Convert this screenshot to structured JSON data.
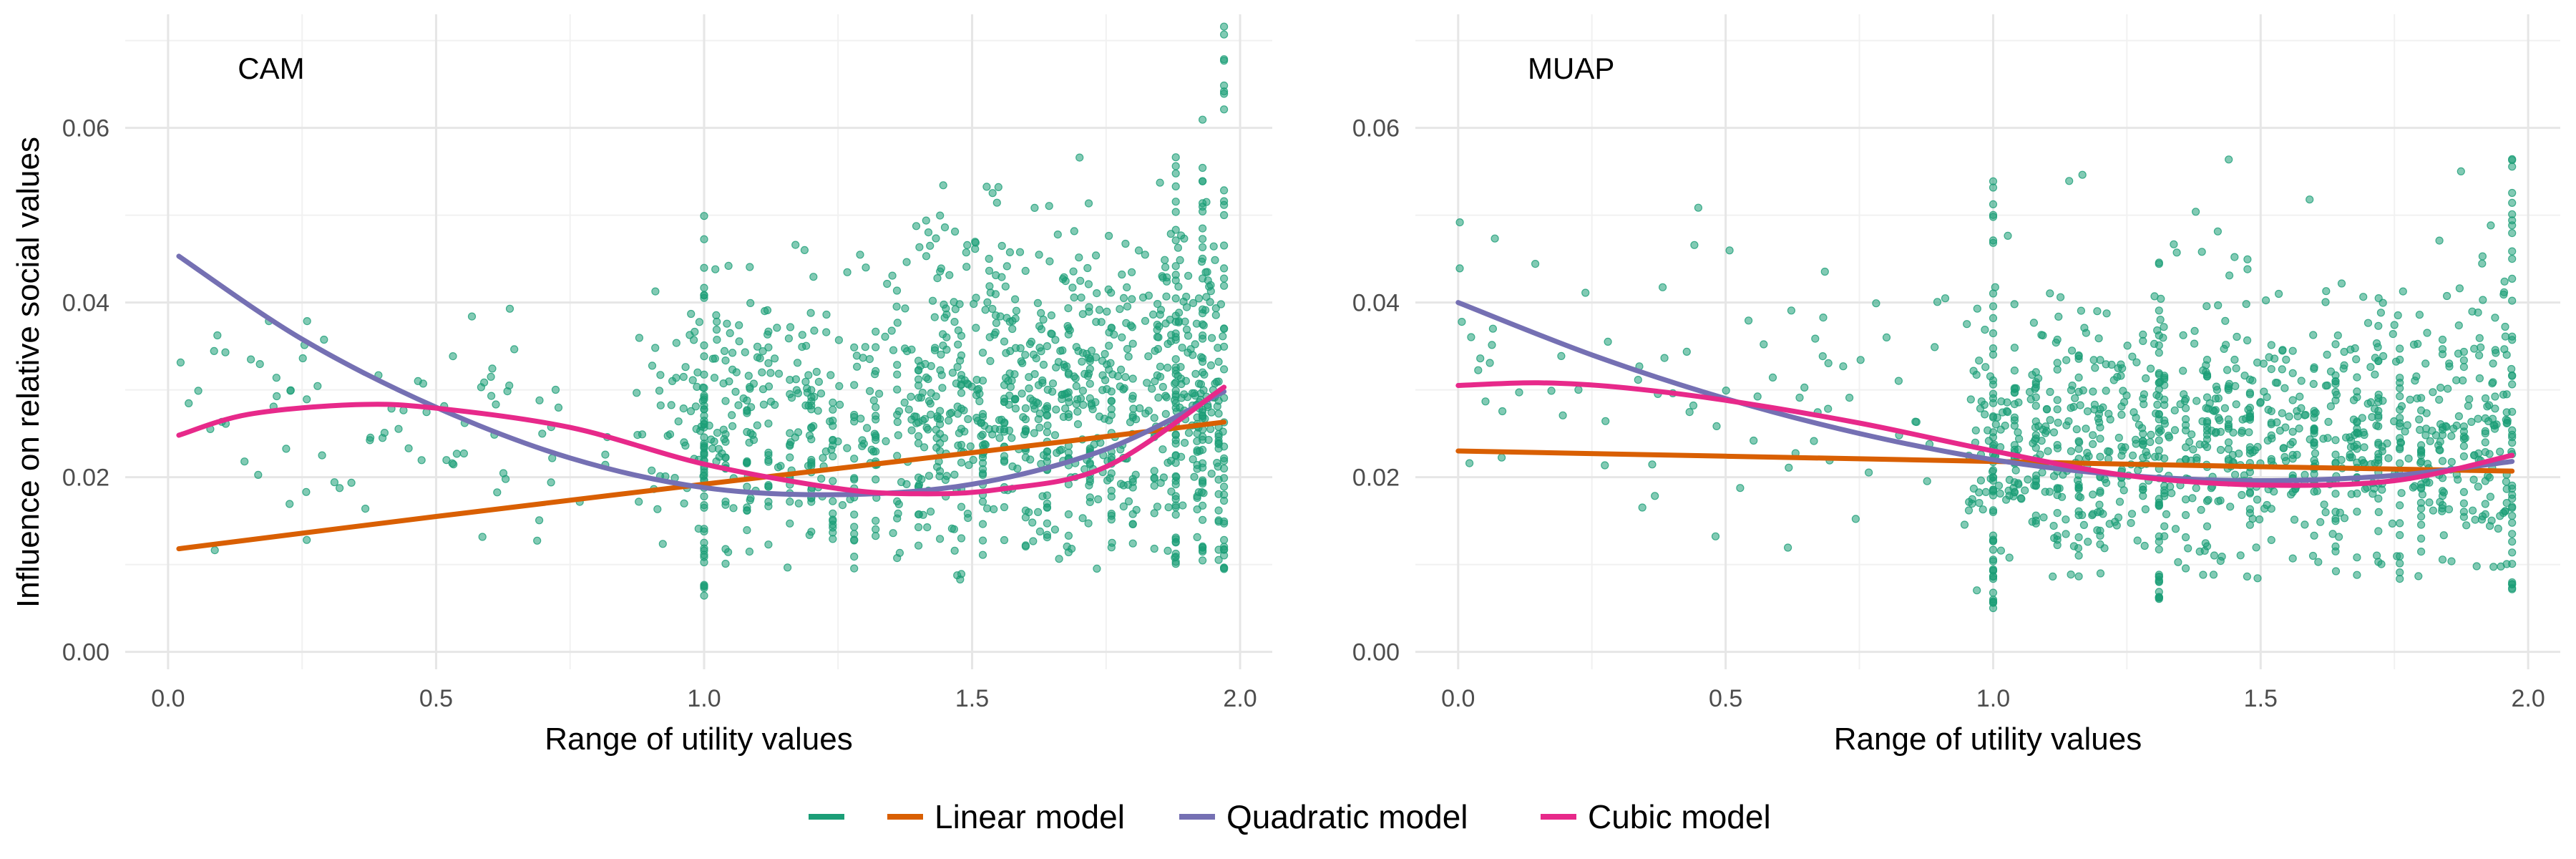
{
  "colors": {
    "points": "#1b9e77",
    "linear": "#d95f02",
    "quadratic": "#7570b3",
    "cubic": "#e7298a"
  },
  "shared": {
    "ylabel": "Influence on relative social values",
    "legend": {
      "placement": "bottom",
      "entries": [
        {
          "key": "points",
          "label": ""
        },
        {
          "key": "linear",
          "label": "Linear model"
        },
        {
          "key": "quadratic",
          "label": "Quadratic model"
        },
        {
          "key": "cubic",
          "label": "Cubic model"
        }
      ]
    }
  },
  "chart_data": [
    {
      "type": "scatter",
      "title": "CAM",
      "xlabel": "Range of utility values",
      "ylabel": "Influence on relative social values",
      "xlim": [
        -0.08,
        2.06
      ],
      "ylim": [
        -0.002,
        0.073
      ],
      "x_ticks": [
        "0.0",
        "0.5",
        "1.0",
        "1.5",
        "2.0"
      ],
      "y_ticks": [
        "0.00",
        "0.02",
        "0.04",
        "0.06"
      ],
      "grid": true,
      "fits": {
        "linear": [
          [
            0.02,
            0.0118
          ],
          [
            0.5,
            0.0155
          ],
          [
            1.0,
            0.0192
          ],
          [
            1.5,
            0.0228
          ],
          [
            1.97,
            0.0263
          ]
        ],
        "quadratic": [
          [
            0.02,
            0.0453
          ],
          [
            0.25,
            0.0358
          ],
          [
            0.5,
            0.028
          ],
          [
            0.75,
            0.0222
          ],
          [
            1.0,
            0.0188
          ],
          [
            1.25,
            0.018
          ],
          [
            1.5,
            0.0192
          ],
          [
            1.75,
            0.0232
          ],
          [
            1.97,
            0.0298
          ]
        ],
        "cubic": [
          [
            0.02,
            0.0248
          ],
          [
            0.15,
            0.0272
          ],
          [
            0.35,
            0.0283
          ],
          [
            0.5,
            0.0279
          ],
          [
            0.75,
            0.0257
          ],
          [
            1.0,
            0.0215
          ],
          [
            1.25,
            0.0187
          ],
          [
            1.4,
            0.0181
          ],
          [
            1.55,
            0.0186
          ],
          [
            1.75,
            0.0212
          ],
          [
            1.97,
            0.0303
          ]
        ]
      },
      "scatter_regions": [
        {
          "x": [
            0.0,
            0.9
          ],
          "y": [
            0.007,
            0.044
          ],
          "n": 90
        },
        {
          "x": [
            0.9,
            1.97
          ],
          "y": [
            0.005,
            0.052
          ],
          "n": 520
        },
        {
          "x": [
            1.4,
            1.97
          ],
          "y": [
            0.008,
            0.06
          ],
          "n": 300
        }
      ],
      "vertical_bands": [
        {
          "x": 1.0,
          "y": [
            0.006,
            0.052
          ]
        },
        {
          "x": 1.97,
          "y": [
            0.009,
            0.073
          ]
        },
        {
          "x": 1.93,
          "y": [
            0.01,
            0.064
          ]
        },
        {
          "x": 1.88,
          "y": [
            0.01,
            0.058
          ]
        }
      ]
    },
    {
      "type": "scatter",
      "title": "MUAP",
      "xlabel": "Range of utility values",
      "ylabel": "",
      "xlim": [
        -0.08,
        2.06
      ],
      "ylim": [
        -0.002,
        0.073
      ],
      "x_ticks": [
        "0.0",
        "0.5",
        "1.0",
        "1.5",
        "2.0"
      ],
      "y_ticks": [
        "0.00",
        "0.02",
        "0.04",
        "0.06"
      ],
      "grid": true,
      "fits": {
        "linear": [
          [
            0.0,
            0.023
          ],
          [
            0.5,
            0.0224
          ],
          [
            1.0,
            0.0218
          ],
          [
            1.5,
            0.0212
          ],
          [
            1.97,
            0.0207
          ]
        ],
        "quadratic": [
          [
            0.0,
            0.04
          ],
          [
            0.25,
            0.034
          ],
          [
            0.5,
            0.029
          ],
          [
            0.75,
            0.025
          ],
          [
            1.0,
            0.022
          ],
          [
            1.25,
            0.0202
          ],
          [
            1.5,
            0.0196
          ],
          [
            1.75,
            0.0202
          ],
          [
            1.97,
            0.0218
          ]
        ],
        "cubic": [
          [
            0.0,
            0.0305
          ],
          [
            0.15,
            0.0308
          ],
          [
            0.3,
            0.0303
          ],
          [
            0.5,
            0.0288
          ],
          [
            0.75,
            0.0262
          ],
          [
            1.0,
            0.023
          ],
          [
            1.25,
            0.0202
          ],
          [
            1.5,
            0.0191
          ],
          [
            1.75,
            0.0196
          ],
          [
            1.97,
            0.0225
          ]
        ]
      },
      "scatter_regions": [
        {
          "x": [
            0.0,
            0.95
          ],
          "y": [
            0.006,
            0.055
          ],
          "n": 80
        },
        {
          "x": [
            0.95,
            1.97
          ],
          "y": [
            0.004,
            0.045
          ],
          "n": 620
        },
        {
          "x": [
            1.0,
            1.97
          ],
          "y": [
            0.008,
            0.064
          ],
          "n": 80
        }
      ],
      "vertical_bands": [
        {
          "x": 1.0,
          "y": [
            0.005,
            0.055
          ]
        },
        {
          "x": 1.97,
          "y": [
            0.007,
            0.064
          ]
        },
        {
          "x": 1.31,
          "y": [
            0.006,
            0.045
          ]
        }
      ]
    }
  ]
}
